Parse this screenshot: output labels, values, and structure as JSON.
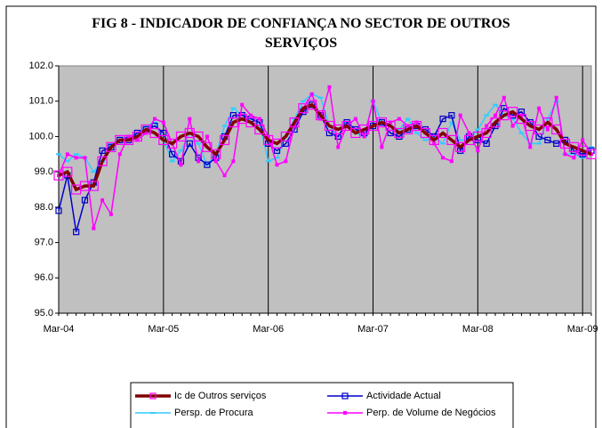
{
  "chart_data": {
    "type": "line",
    "title": "FIG 8 - INDICADOR DE CONFIANÇA NO SECTOR DE OUTROS SERVIÇOS",
    "categories": [
      "Mar-04",
      null,
      null,
      null,
      null,
      null,
      null,
      null,
      null,
      null,
      null,
      null,
      "Mar-05",
      null,
      null,
      null,
      null,
      null,
      null,
      null,
      null,
      null,
      null,
      null,
      "Mar-06",
      null,
      null,
      null,
      null,
      null,
      null,
      null,
      null,
      null,
      null,
      null,
      "Mar-07",
      null,
      null,
      null,
      null,
      null,
      null,
      null,
      null,
      null,
      null,
      null,
      "Mar-08",
      null,
      null,
      null,
      null,
      null,
      null,
      null,
      null,
      null,
      null,
      null,
      "Mar-09",
      null
    ],
    "ylim": [
      95,
      102
    ],
    "yticks": [
      {
        "value": 95,
        "label": "95.0"
      },
      {
        "value": 96,
        "label": "96.0"
      },
      {
        "value": 97,
        "label": "97.0"
      },
      {
        "value": 98,
        "label": "98.0"
      },
      {
        "value": 99,
        "label": "99.0"
      },
      {
        "value": 100,
        "label": "100.0"
      },
      {
        "value": 101,
        "label": "101.0"
      },
      {
        "value": 102,
        "label": "102.0"
      }
    ],
    "x_grid": true,
    "plot_background": "#c0c0c0",
    "series": [
      {
        "name": "Ic de Outros serviços",
        "color": "#800000",
        "width": 3.5,
        "marker": "square",
        "marker_color": "#ff00ff",
        "values": [
          98.9,
          99.0,
          98.5,
          98.6,
          98.6,
          99.3,
          99.7,
          99.9,
          99.9,
          100.0,
          100.2,
          100.1,
          99.9,
          99.8,
          100.0,
          100.1,
          100.0,
          99.7,
          99.5,
          99.9,
          100.4,
          100.5,
          100.4,
          100.2,
          99.9,
          99.8,
          100.0,
          100.4,
          100.8,
          100.9,
          100.6,
          100.3,
          100.2,
          100.3,
          100.1,
          100.2,
          100.3,
          100.4,
          100.3,
          100.1,
          100.2,
          100.3,
          100.1,
          99.9,
          100.1,
          99.9,
          99.7,
          99.9,
          100.0,
          100.1,
          100.4,
          100.6,
          100.7,
          100.5,
          100.3,
          100.2,
          100.4,
          100.2,
          99.8,
          99.7,
          99.6,
          99.5
        ]
      },
      {
        "name": "Actividade Actual",
        "color": "#0000cc",
        "width": 1.5,
        "marker": "square",
        "marker_color": "#0000cc",
        "values": [
          97.9,
          98.9,
          97.3,
          98.2,
          98.7,
          99.6,
          99.7,
          99.9,
          99.9,
          100.1,
          100.2,
          100.3,
          100.1,
          99.5,
          99.3,
          99.8,
          99.4,
          99.2,
          99.4,
          100.0,
          100.6,
          100.6,
          100.5,
          100.4,
          99.8,
          99.6,
          99.8,
          100.2,
          100.7,
          100.9,
          100.6,
          100.1,
          100.0,
          100.4,
          100.2,
          100.1,
          100.3,
          100.4,
          100.1,
          100.0,
          100.2,
          100.3,
          100.2,
          100.0,
          100.5,
          100.6,
          99.6,
          100.0,
          99.9,
          99.8,
          100.3,
          100.8,
          100.6,
          100.7,
          100.4,
          100.0,
          99.9,
          99.8,
          99.9,
          99.6,
          99.5,
          99.6
        ]
      },
      {
        "name": "Persp. de Procura",
        "color": "#33ccff",
        "width": 1.5,
        "marker": "dash",
        "marker_color": "#33ccff",
        "values": [
          99.5,
          99.3,
          99.5,
          99.4,
          99.0,
          99.3,
          99.8,
          99.9,
          100.0,
          100.1,
          100.3,
          100.4,
          99.9,
          99.3,
          99.6,
          100.1,
          99.8,
          99.2,
          99.5,
          100.3,
          100.8,
          100.6,
          100.5,
          100.4,
          99.3,
          99.4,
          100.0,
          100.5,
          101.0,
          101.2,
          101.1,
          100.3,
          100.0,
          100.4,
          100.1,
          100.0,
          101.0,
          100.4,
          100.3,
          100.2,
          100.5,
          100.1,
          99.9,
          100.0,
          99.8,
          100.4,
          99.9,
          99.9,
          100.2,
          100.6,
          100.9,
          100.6,
          100.5,
          100.1,
          99.8,
          99.8,
          100.5,
          101.0,
          99.5,
          99.5,
          99.4,
          99.7
        ]
      },
      {
        "name": "Perp. de Volume de Negócios",
        "color": "#ff00ff",
        "width": 1.5,
        "marker": "dot",
        "marker_color": "#ff00ff",
        "values": [
          98.9,
          99.5,
          99.4,
          99.4,
          97.4,
          98.2,
          97.8,
          99.5,
          100.0,
          99.9,
          100.1,
          100.5,
          100.4,
          99.8,
          99.2,
          100.5,
          99.3,
          100.0,
          99.3,
          98.9,
          99.3,
          100.9,
          100.6,
          100.5,
          100.0,
          99.2,
          99.3,
          100.3,
          100.8,
          101.2,
          100.5,
          101.4,
          99.7,
          100.3,
          100.5,
          100.0,
          101.0,
          99.7,
          100.4,
          100.5,
          100.3,
          100.4,
          100.1,
          99.8,
          99.4,
          99.3,
          100.6,
          100.1,
          99.6,
          100.3,
          100.6,
          101.1,
          100.3,
          100.6,
          99.7,
          100.8,
          100.2,
          101.1,
          99.5,
          99.4,
          99.9,
          99.5
        ]
      }
    ]
  }
}
